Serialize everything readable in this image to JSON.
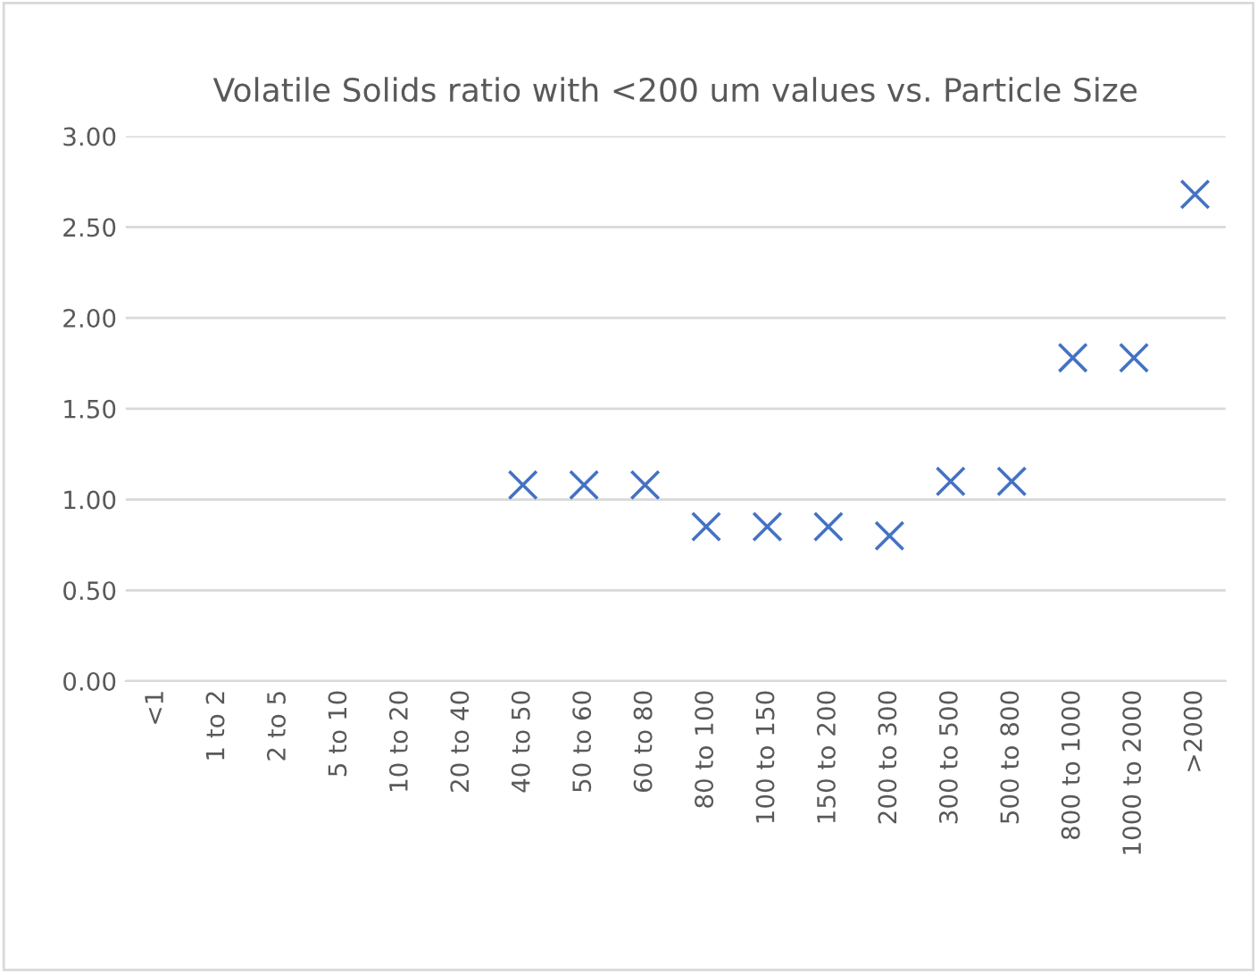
{
  "chart_data": {
    "type": "scatter",
    "title": "Volatile Solids ratio with <200 um values vs. Particle Size",
    "categories": [
      "<1",
      "1 to 2",
      "2 to 5",
      "5 to 10",
      "10 to 20",
      "20 to 40",
      "40 to 50",
      "50 to 60",
      "60 to 80",
      "80 to 100",
      "100 to 150",
      "150 to 200",
      "200 to 300",
      "300 to 500",
      "500 to 800",
      "800 to 1000",
      "1000 to 2000",
      ">2000"
    ],
    "series": [
      {
        "color": "#4472c4",
        "values": [
          null,
          null,
          null,
          null,
          null,
          null,
          1.08,
          1.08,
          1.08,
          0.85,
          0.85,
          0.85,
          0.8,
          1.1,
          1.1,
          1.78,
          1.78,
          2.68
        ]
      }
    ],
    "ylim": [
      0,
      3
    ],
    "yticks": [
      {
        "value": 0,
        "label": "0.00"
      },
      {
        "value": 0.5,
        "label": "0.50"
      },
      {
        "value": 1,
        "label": "1.00"
      },
      {
        "value": 1.5,
        "label": "1.50"
      },
      {
        "value": 2,
        "label": "2.00"
      },
      {
        "value": 2.5,
        "label": "2.50"
      },
      {
        "value": 3,
        "label": "3.00"
      }
    ],
    "grid": "y",
    "marker": "cross"
  }
}
